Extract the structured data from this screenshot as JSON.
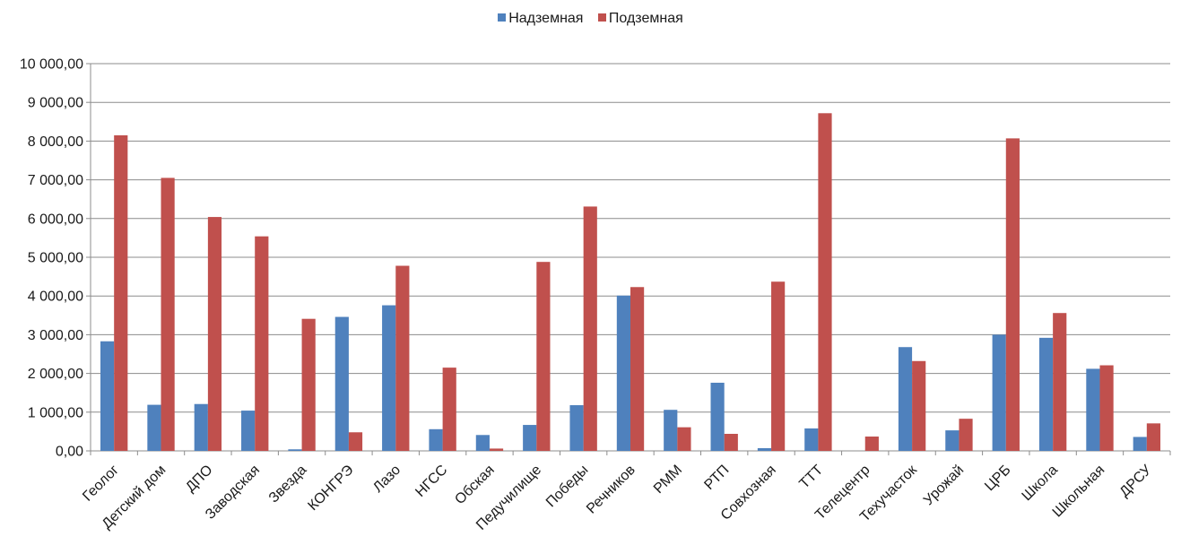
{
  "chart_data": {
    "type": "bar",
    "title": "",
    "xlabel": "",
    "ylabel": "",
    "ylim": [
      0,
      10000
    ],
    "y_ticks": [
      "0,00",
      "1 000,00",
      "2 000,00",
      "3 000,00",
      "4 000,00",
      "5 000,00",
      "6 000,00",
      "7 000,00",
      "8 000,00",
      "9 000,00",
      "10 000,00"
    ],
    "grid": "horizontal",
    "legend_position": "top",
    "categories": [
      "Геолог",
      "Детский дом",
      "ДПО",
      "Заводская",
      "Звезда",
      "КОНГРЭ",
      "Лазо",
      "НГСС",
      "Обская",
      "Педучилище",
      "Победы",
      "Речников",
      "РММ",
      "РТП",
      "Совхозная",
      "ТТТ",
      "Телецентр",
      "Техучасток",
      "Урожай",
      "ЦРБ",
      "Школа",
      "Школьная",
      "ДРСУ"
    ],
    "series": [
      {
        "name": "Надземная",
        "color": "#4F81BD",
        "values": [
          2830,
          1190,
          1210,
          1040,
          40,
          3460,
          3760,
          560,
          410,
          670,
          1180,
          4010,
          1060,
          1760,
          70,
          580,
          0,
          2680,
          530,
          3000,
          2920,
          2120,
          360
        ]
      },
      {
        "name": "Подземная",
        "color": "#C0504D",
        "values": [
          8150,
          7050,
          6040,
          5540,
          3410,
          480,
          4780,
          2150,
          60,
          4880,
          6310,
          4230,
          610,
          440,
          4370,
          8720,
          370,
          2320,
          830,
          8070,
          3560,
          2210,
          710
        ]
      }
    ]
  }
}
